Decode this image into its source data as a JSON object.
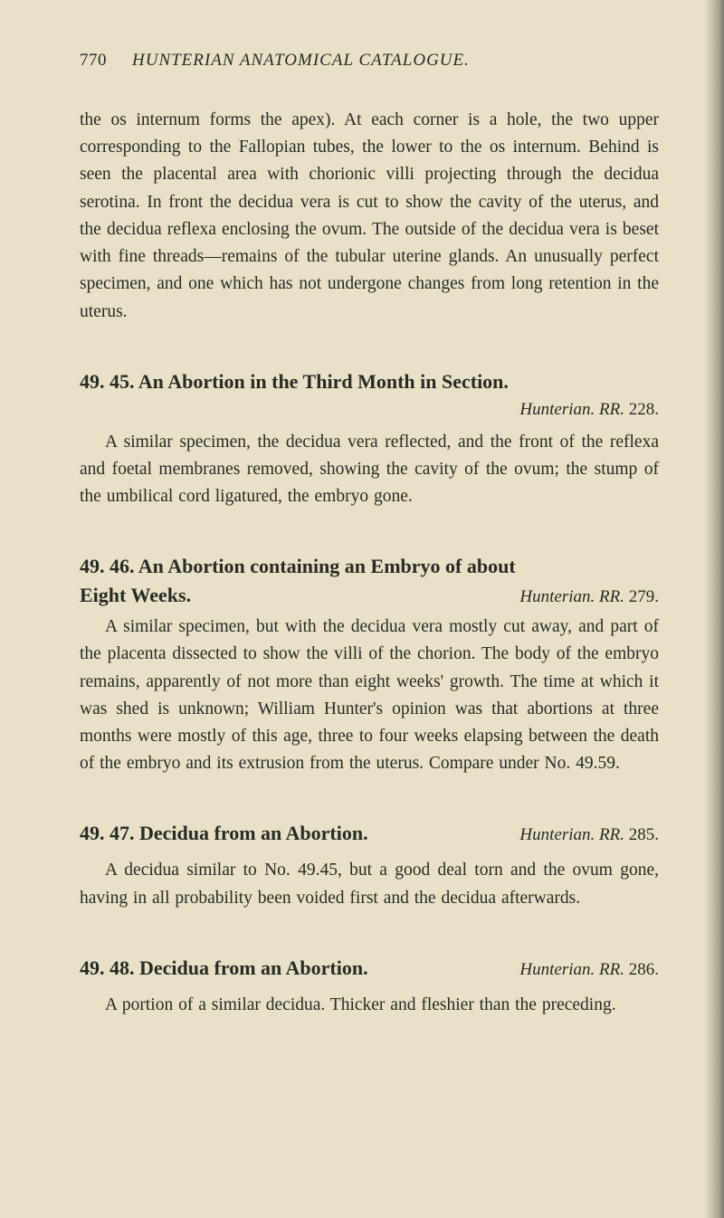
{
  "page": {
    "number": "770",
    "running_title": "HUNTERIAN ANATOMICAL CATALOGUE."
  },
  "lead_paragraph": "the os internum forms the apex). At each corner is a hole, the two upper corresponding to the Fallopian tubes, the lower to the os internum. Behind is seen the placental area with chorionic villi projecting through the decidua serotina. In front the decidua vera is cut to show the cavity of the uterus, and the decidua reflexa enclosing the ovum. The outside of the decidua vera is beset with fine threads—remains of the tubular uterine glands. An unusually perfect specimen, and one which has not undergone changes from long retention in the uterus.",
  "entries": [
    {
      "number": "49.",
      "sub": "45.",
      "title": "An Abortion in the Third Month in Section.",
      "ref_italic": "Hunterian. RR.",
      "ref_num": "228.",
      "ref_below": true,
      "body": "A similar specimen, the decidua vera reflected, and the front of the reflexa and foetal membranes removed, showing the cavity of the ovum; the stump of the umbilical cord ligatured, the embryo gone."
    },
    {
      "number": "49.",
      "sub": "46.",
      "title_line1": "An Abortion containing an Embryo of about",
      "title_line2": "Eight Weeks.",
      "ref_italic": "Hunterian. RR.",
      "ref_num": "279.",
      "two_line": true,
      "body": "A similar specimen, but with the decidua vera mostly cut away, and part of the placenta dissected to show the villi of the chorion. The body of the embryo remains, apparently of not more than eight weeks' growth. The time at which it was shed is unknown; William Hunter's opinion was that abortions at three months were mostly of this age, three to four weeks elapsing between the death of the embryo and its extrusion from the uterus. Compare under No. 49.59."
    },
    {
      "number": "49.",
      "sub": "47.",
      "title": "Decidua from an Abortion.",
      "ref_italic": "Hunterian. RR.",
      "ref_num": "285.",
      "inline_ref": true,
      "body": "A decidua similar to No. 49.45, but a good deal torn and the ovum gone, having in all probability been voided first and the decidua afterwards."
    },
    {
      "number": "49.",
      "sub": "48.",
      "title": "Decidua from an Abortion.",
      "ref_italic": "Hunterian. RR.",
      "ref_num": "286.",
      "inline_ref": true,
      "body": "A portion of a similar decidua. Thicker and fleshier than the preceding."
    }
  ]
}
